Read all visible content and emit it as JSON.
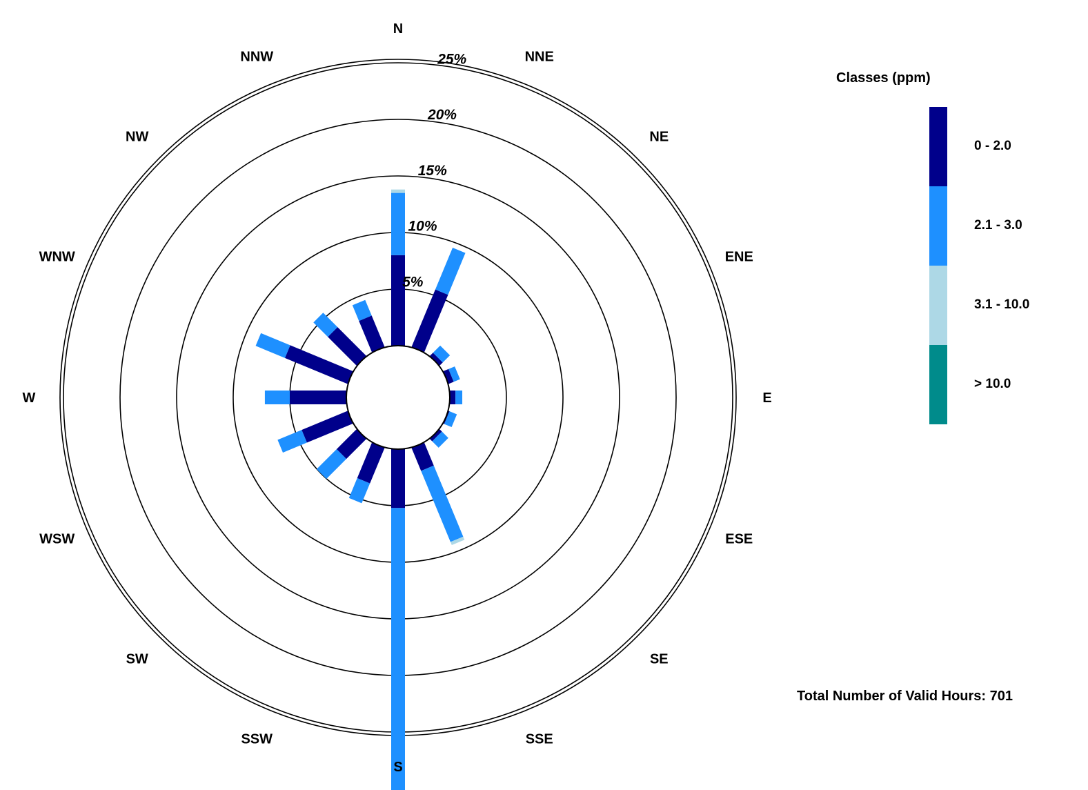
{
  "chart_data": {
    "type": "wind_rose",
    "directions": [
      "N",
      "NNE",
      "NE",
      "ENE",
      "E",
      "ESE",
      "SE",
      "SSE",
      "S",
      "SSW",
      "SW",
      "WSW",
      "W",
      "WNW",
      "NW",
      "NNW"
    ],
    "ring_labels": [
      "5%",
      "10%",
      "15%",
      "20%",
      "25%"
    ],
    "rings": [
      5,
      10,
      15,
      20,
      25
    ],
    "legend": {
      "title": "Classes (ppm)",
      "classes": [
        {
          "label": "0 - 2.0",
          "color": "#00008B"
        },
        {
          "label": "2.1 - 3.0",
          "color": "#1E90FF"
        },
        {
          "label": "3.1 - 10.0",
          "color": "#ADD8E6"
        },
        {
          "label": "> 10.0",
          "color": "#008B8B"
        }
      ]
    },
    "series": [
      {
        "name": "0 - 2.0",
        "values": [
          8.0,
          5.5,
          0.4,
          0.5,
          0.5,
          0.1,
          0.3,
          2.2,
          5.2,
          3.4,
          2.5,
          4.4,
          5.0,
          6.0,
          3.6,
          3.0
        ]
      },
      {
        "name": "2.1 - 3.0",
        "values": [
          5.5,
          4.0,
          0.9,
          0.6,
          0.6,
          0.7,
          0.8,
          6.8,
          25.2,
          1.9,
          2.5,
          2.3,
          2.2,
          2.8,
          1.8,
          1.5
        ]
      },
      {
        "name": "3.1 - 10.0",
        "values": [
          0.3,
          0,
          0,
          0,
          0,
          0,
          0,
          0.3,
          0.1,
          0,
          0,
          0,
          0,
          0,
          0,
          0
        ]
      },
      {
        "name": "> 10.0",
        "values": [
          0,
          0,
          0,
          0,
          0,
          0,
          0,
          0,
          0,
          0,
          0,
          0,
          0,
          0,
          0,
          0
        ]
      }
    ]
  },
  "footer": {
    "total_label": "Total Number of Valid Hours: 701"
  }
}
